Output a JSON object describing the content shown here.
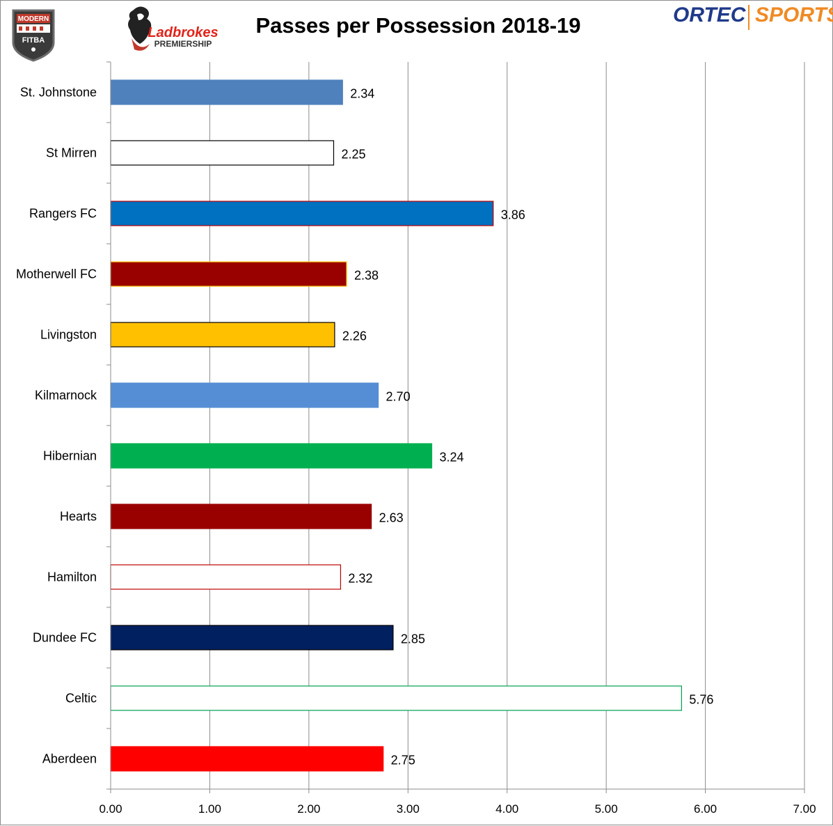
{
  "header": {
    "title": "Passes per Possession 2018-19",
    "logos": {
      "left": "MODERN FITBA",
      "center_brand": "Ladbrokes",
      "center_sub": "PREMIERSHIP",
      "right_a": "ORTEC",
      "right_b": "SPORTS"
    }
  },
  "colors": {
    "grid": "#8c8c8c",
    "ortec_blue": "#1f3a8a",
    "ortec_orange": "#f08a24",
    "ladbrokes_red": "#e2231a"
  },
  "chart_data": {
    "type": "bar",
    "orientation": "horizontal",
    "title": "Passes per Possession 2018-19",
    "xlabel": "",
    "ylabel": "",
    "xlim": [
      0,
      7
    ],
    "x_ticks": [
      "0.00",
      "1.00",
      "2.00",
      "3.00",
      "4.00",
      "5.00",
      "6.00",
      "7.00"
    ],
    "grid": "vertical",
    "categories": [
      "St. Johnstone",
      "St Mirren",
      "Rangers FC",
      "Motherwell FC",
      "Livingston",
      "Kilmarnock",
      "Hibernian",
      "Hearts",
      "Hamilton",
      "Dundee FC",
      "Celtic",
      "Aberdeen"
    ],
    "values": [
      2.34,
      2.25,
      3.86,
      2.38,
      2.26,
      2.7,
      3.24,
      2.63,
      2.32,
      2.85,
      5.76,
      2.75
    ],
    "value_labels": [
      "2.34",
      "2.25",
      "3.86",
      "2.38",
      "2.26",
      "2.70",
      "3.24",
      "2.63",
      "2.32",
      "2.85",
      "5.76",
      "2.75"
    ],
    "bar_fills": [
      "#4f81bd",
      "#ffffff",
      "#0070c0",
      "#990000",
      "#ffc000",
      "#558ed5",
      "#00b050",
      "#990000",
      "#ffffff",
      "#002060",
      "#ffffff",
      "#ff0000"
    ],
    "bar_borders": [
      "#4f81bd",
      "#000000",
      "#c00000",
      "#ffc000",
      "#000000",
      "#558ed5",
      "#00b050",
      "#990000",
      "#c00000",
      "#000000",
      "#00a050",
      "#ff0000"
    ]
  }
}
